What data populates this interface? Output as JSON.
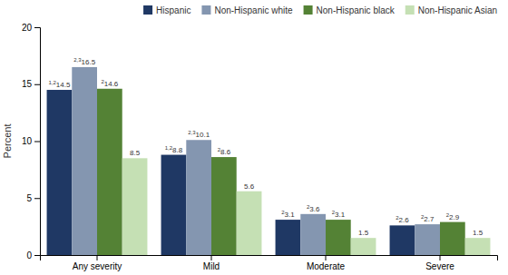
{
  "chart_data": {
    "type": "bar",
    "categories": [
      "Any severity",
      "Mild",
      "Moderate",
      "Severe"
    ],
    "series": [
      {
        "name": "Hispanic",
        "color": "#1f3864",
        "values": [
          14.5,
          8.8,
          3.1,
          2.6
        ],
        "superscripts": [
          "1,2",
          "1,2",
          "2",
          "2"
        ]
      },
      {
        "name": "Non-Hispanic white",
        "color": "#8496b0",
        "values": [
          16.5,
          10.1,
          3.6,
          2.7
        ],
        "superscripts": [
          "2,3",
          "2,3",
          "2",
          "2"
        ]
      },
      {
        "name": "Non-Hispanic black",
        "color": "#548235",
        "values": [
          14.6,
          8.6,
          3.1,
          2.9
        ],
        "superscripts": [
          "2",
          "2",
          "2",
          "2"
        ]
      },
      {
        "name": "Non-Hispanic Asian",
        "color": "#c5e0b4",
        "values": [
          8.5,
          5.6,
          1.5,
          1.5
        ]
      }
    ],
    "ylabel": "Percent",
    "ylim": [
      0,
      20
    ],
    "yticks": [
      0,
      5,
      10,
      15,
      20
    ],
    "grid": false,
    "legend": "top",
    "data_labels": true
  }
}
